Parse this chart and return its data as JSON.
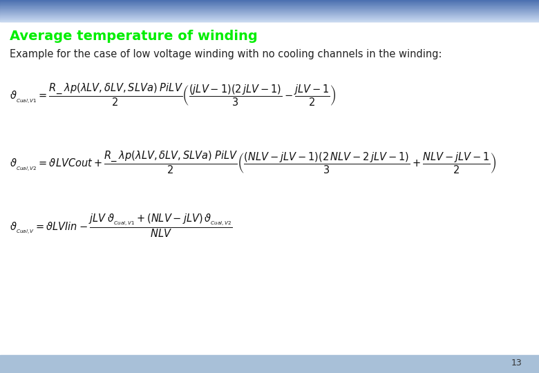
{
  "title": "Average temperature of winding",
  "title_color": "#00ee00",
  "title_fontsize": 14,
  "subtitle": "Example for the case of low voltage winding with no cooling channels in the winding:",
  "subtitle_fontsize": 10.5,
  "header_gradient_top": "#4a6faf",
  "header_gradient_bottom": "#c8d8f0",
  "footer_color": "#a8c0d8",
  "page_number": "13",
  "bg_color": "#ffffff",
  "eq_color": "#111111",
  "eq_fontsize": 10.5
}
